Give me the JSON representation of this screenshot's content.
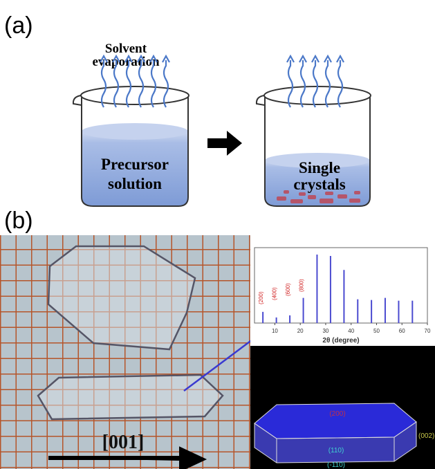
{
  "panel_a": {
    "label": "(a)",
    "evaporation_label": [
      "Solvent",
      "evaporation"
    ],
    "beaker_1_label": [
      "Precursor",
      "solution"
    ],
    "beaker_2_label": [
      "Single",
      "crystals"
    ]
  },
  "panel_b": {
    "label": "(b)",
    "photo_arrow_label": "[001]",
    "xrd": {
      "type": "stem",
      "x_label": "2θ (degree)",
      "xlim": [
        2,
        70
      ],
      "xticks": [
        10,
        20,
        30,
        40,
        50,
        60,
        70
      ],
      "ylim": [
        0,
        100
      ],
      "color": "#4a4ad0",
      "x": [
        5.3,
        10.6,
        15.9,
        21.2,
        26.6,
        31.9,
        37.2,
        42.6,
        48.0,
        53.4,
        58.7,
        64.1
      ],
      "values": [
        16,
        8,
        11,
        36,
        98,
        96,
        76,
        34,
        33,
        36,
        32,
        32
      ],
      "annotations": [
        {
          "text": "(200)",
          "x": 5.3
        },
        {
          "text": "(400)",
          "x": 10.6
        },
        {
          "text": "(600)",
          "x": 15.9
        },
        {
          "text": "(800)",
          "x": 21.2
        }
      ]
    },
    "model_labels": {
      "top": "(200)",
      "side": "(002)",
      "front": "(110)",
      "bottom": "(-110)"
    }
  }
}
